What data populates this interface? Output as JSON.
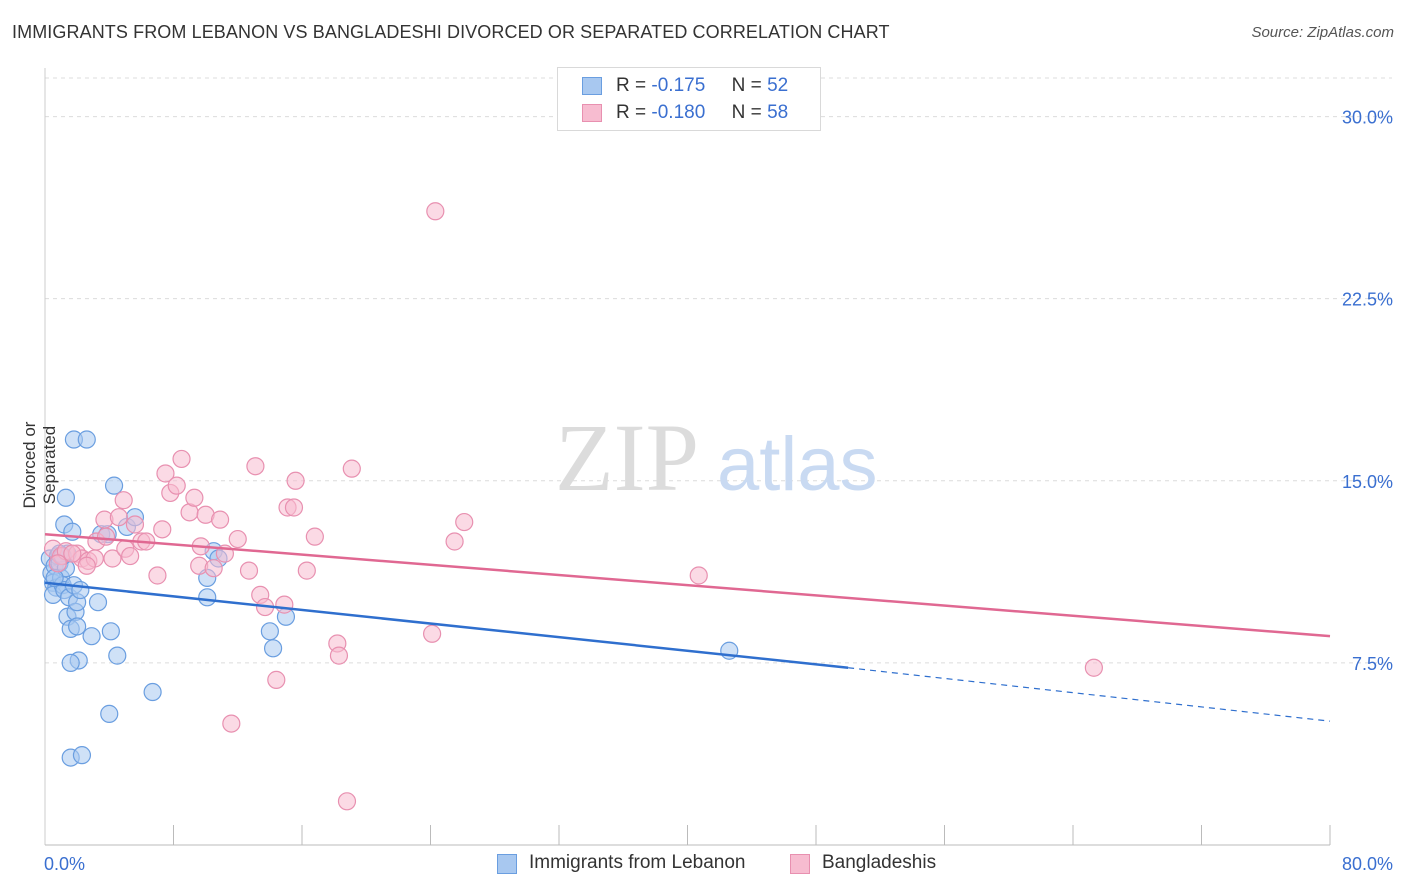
{
  "title": "IMMIGRANTS FROM LEBANON VS BANGLADESHI DIVORCED OR SEPARATED CORRELATION CHART",
  "source": "Source: ZipAtlas.com",
  "watermark": {
    "zip": "ZIP",
    "atlas": "atlas"
  },
  "legend": {
    "rows": [
      {
        "r_label": "R =",
        "r_value": "-0.175",
        "n_label": "N =",
        "n_value": "52"
      },
      {
        "r_label": "R =",
        "r_value": "-0.180",
        "n_label": "N =",
        "n_value": "58"
      }
    ]
  },
  "colors": {
    "blue_fill": "#a8c8f0",
    "blue_stroke": "#6a9ee0",
    "blue_line": "#2f6fce",
    "pink_fill": "#f7bcd0",
    "pink_stroke": "#e890b0",
    "pink_line": "#e06892",
    "tick_label": "#3a6fd0",
    "grid": "#dcdcdc"
  },
  "chart_data": {
    "type": "scatter",
    "title": "IMMIGRANTS FROM LEBANON VS BANGLADESHI DIVORCED OR SEPARATED CORRELATION CHART",
    "xlabel": "",
    "ylabel": "Divorced or Separated",
    "xlim": [
      0,
      80
    ],
    "ylim": [
      0,
      32
    ],
    "x_tick_labels": [
      "0.0%",
      "80.0%"
    ],
    "y_ticks": [
      7.5,
      15.0,
      22.5,
      30.0
    ],
    "y_tick_labels": [
      "7.5%",
      "15.0%",
      "22.5%",
      "30.0%"
    ],
    "grid": true,
    "series": [
      {
        "name": "Immigrants from Lebanon",
        "color": "blue",
        "points": [
          [
            0.3,
            11.8
          ],
          [
            0.4,
            11.2
          ],
          [
            0.5,
            10.8
          ],
          [
            0.6,
            11.5
          ],
          [
            0.7,
            10.6
          ],
          [
            0.5,
            10.3
          ],
          [
            0.8,
            11.9
          ],
          [
            0.9,
            11.6
          ],
          [
            1.0,
            11.0
          ],
          [
            1.1,
            10.7
          ],
          [
            1.2,
            10.5
          ],
          [
            1.3,
            11.4
          ],
          [
            1.4,
            12.0
          ],
          [
            1.2,
            13.2
          ],
          [
            1.3,
            14.3
          ],
          [
            1.5,
            10.2
          ],
          [
            1.4,
            9.4
          ],
          [
            1.6,
            8.9
          ],
          [
            1.7,
            12.9
          ],
          [
            1.8,
            10.7
          ],
          [
            1.9,
            9.6
          ],
          [
            2.0,
            10.0
          ],
          [
            2.0,
            9.0
          ],
          [
            2.1,
            7.6
          ],
          [
            2.2,
            10.5
          ],
          [
            1.6,
            7.5
          ],
          [
            1.8,
            16.7
          ],
          [
            2.6,
            16.7
          ],
          [
            2.9,
            8.6
          ],
          [
            3.3,
            10.0
          ],
          [
            3.5,
            12.8
          ],
          [
            3.9,
            12.8
          ],
          [
            4.1,
            8.8
          ],
          [
            4.3,
            14.8
          ],
          [
            4.5,
            7.8
          ],
          [
            5.1,
            13.1
          ],
          [
            5.6,
            13.5
          ],
          [
            6.7,
            6.3
          ],
          [
            4.0,
            5.4
          ],
          [
            1.6,
            3.6
          ],
          [
            2.3,
            3.7
          ],
          [
            10.1,
            11.0
          ],
          [
            10.1,
            10.2
          ],
          [
            10.5,
            12.1
          ],
          [
            10.8,
            11.8
          ],
          [
            14.0,
            8.8
          ],
          [
            14.2,
            8.1
          ],
          [
            15.0,
            9.4
          ],
          [
            42.6,
            8.0
          ],
          [
            0.9,
            12.0
          ],
          [
            1.1,
            11.9
          ],
          [
            0.6,
            11.0
          ]
        ]
      },
      {
        "name": "Bangladeshis",
        "color": "pink",
        "points": [
          [
            0.5,
            12.2
          ],
          [
            1.0,
            11.9
          ],
          [
            1.3,
            12.1
          ],
          [
            2.0,
            12.0
          ],
          [
            2.3,
            11.8
          ],
          [
            2.7,
            11.7
          ],
          [
            3.1,
            11.8
          ],
          [
            3.2,
            12.5
          ],
          [
            3.7,
            13.4
          ],
          [
            3.8,
            12.7
          ],
          [
            4.2,
            11.8
          ],
          [
            4.6,
            13.5
          ],
          [
            4.9,
            14.2
          ],
          [
            5.0,
            12.2
          ],
          [
            5.6,
            13.2
          ],
          [
            6.0,
            12.5
          ],
          [
            6.3,
            12.5
          ],
          [
            7.0,
            11.1
          ],
          [
            7.3,
            13.0
          ],
          [
            7.5,
            15.3
          ],
          [
            7.8,
            14.5
          ],
          [
            8.2,
            14.8
          ],
          [
            8.5,
            15.9
          ],
          [
            9.0,
            13.7
          ],
          [
            9.3,
            14.3
          ],
          [
            9.6,
            11.5
          ],
          [
            10.0,
            13.6
          ],
          [
            10.5,
            11.4
          ],
          [
            10.9,
            13.4
          ],
          [
            11.2,
            12.0
          ],
          [
            11.6,
            5.0
          ],
          [
            12.0,
            12.6
          ],
          [
            12.7,
            11.3
          ],
          [
            13.1,
            15.6
          ],
          [
            13.4,
            10.3
          ],
          [
            13.7,
            9.8
          ],
          [
            14.4,
            6.8
          ],
          [
            14.9,
            9.9
          ],
          [
            15.1,
            13.9
          ],
          [
            15.5,
            13.9
          ],
          [
            15.6,
            15.0
          ],
          [
            16.3,
            11.3
          ],
          [
            16.8,
            12.7
          ],
          [
            18.2,
            8.3
          ],
          [
            18.3,
            7.8
          ],
          [
            18.8,
            1.8
          ],
          [
            19.1,
            15.5
          ],
          [
            24.1,
            8.7
          ],
          [
            24.3,
            26.1
          ],
          [
            25.5,
            12.5
          ],
          [
            26.1,
            13.3
          ],
          [
            40.7,
            11.1
          ],
          [
            65.3,
            7.3
          ],
          [
            1.7,
            12.0
          ],
          [
            2.6,
            11.5
          ],
          [
            5.3,
            11.9
          ],
          [
            9.7,
            12.3
          ],
          [
            0.8,
            11.6
          ]
        ]
      }
    ],
    "trendlines": [
      {
        "series": "Immigrants from Lebanon",
        "color": "blue",
        "x0": 0,
        "y0": 10.8,
        "x1": 50,
        "y1": 7.3,
        "dashed_to_x": 80,
        "dashed_to_y": 5.1
      },
      {
        "series": "Bangladeshis",
        "color": "pink",
        "x0": 0,
        "y0": 12.8,
        "x1": 80,
        "y1": 8.6
      }
    ]
  }
}
